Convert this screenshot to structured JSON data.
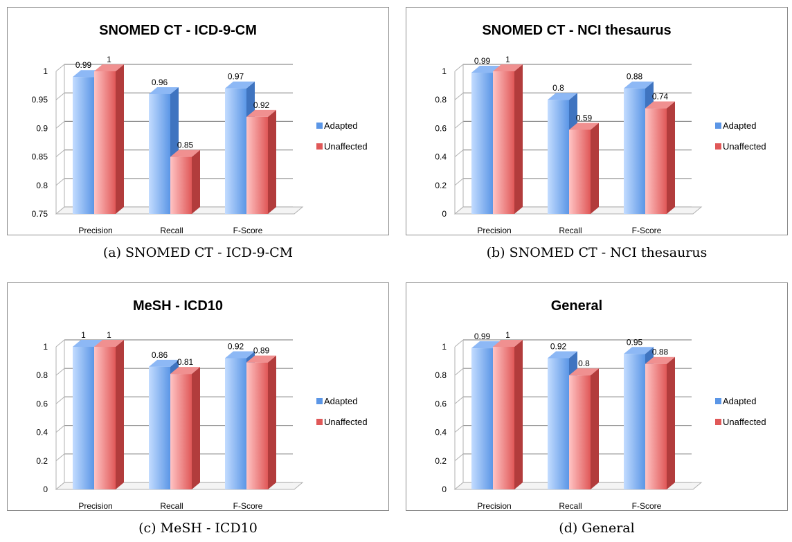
{
  "colors": {
    "adapted_front_light": "#c3dcff",
    "adapted_front_dark": "#5b96e6",
    "adapted_side": "#3f74c0",
    "adapted_top": "#8db8f5",
    "unaffected_front_light": "#ffc4c4",
    "unaffected_front_dark": "#e05858",
    "unaffected_side": "#b23c3c",
    "unaffected_top": "#f09090"
  },
  "panels": [
    {
      "caption": "(a) SNOMED CT - ICD-9-CM",
      "chart_data": {
        "type": "bar",
        "title": "SNOMED CT - ICD-9-CM",
        "categories": [
          "Precision",
          "Recall",
          "F-Score"
        ],
        "series": [
          {
            "name": "Adapted",
            "values": [
              0.99,
              0.96,
              0.97
            ],
            "labels": [
              "0.99",
              "0.96",
              "0.97"
            ]
          },
          {
            "name": "Unaffected",
            "values": [
              1,
              0.85,
              0.92
            ],
            "labels": [
              "1",
              "0.85",
              "0.92"
            ]
          }
        ],
        "ylim": [
          0.75,
          1
        ],
        "yticks": [
          "0.75",
          "0.8",
          "0.85",
          "0.9",
          "0.95",
          "1"
        ],
        "legend_position": "right",
        "grid": true
      }
    },
    {
      "caption": "(b) SNOMED CT - NCI thesaurus",
      "chart_data": {
        "type": "bar",
        "title": "SNOMED CT - NCI thesaurus",
        "categories": [
          "Precision",
          "Recall",
          "F-Score"
        ],
        "series": [
          {
            "name": "Adapted",
            "values": [
              0.99,
              0.8,
              0.88
            ],
            "labels": [
              "0.99",
              "0.8",
              "0.88"
            ]
          },
          {
            "name": "Unaffected",
            "values": [
              1,
              0.59,
              0.74
            ],
            "labels": [
              "1",
              "0.59",
              "0.74"
            ]
          }
        ],
        "ylim": [
          0,
          1
        ],
        "yticks": [
          "0",
          "0.2",
          "0.4",
          "0.6",
          "0.8",
          "1"
        ],
        "legend_position": "right",
        "grid": true
      }
    },
    {
      "caption": "(c) MeSH - ICD10",
      "chart_data": {
        "type": "bar",
        "title": "MeSH - ICD10",
        "categories": [
          "Precision",
          "Recall",
          "F-Score"
        ],
        "series": [
          {
            "name": "Adapted",
            "values": [
              1,
              0.86,
              0.92
            ],
            "labels": [
              "1",
              "0.86",
              "0.92"
            ]
          },
          {
            "name": "Unaffected",
            "values": [
              1,
              0.81,
              0.89
            ],
            "labels": [
              "1",
              "0.81",
              "0.89"
            ]
          }
        ],
        "ylim": [
          0,
          1
        ],
        "yticks": [
          "0",
          "0.2",
          "0.4",
          "0.6",
          "0.8",
          "1"
        ],
        "legend_position": "right",
        "grid": true
      }
    },
    {
      "caption": "(d) General",
      "chart_data": {
        "type": "bar",
        "title": "General",
        "categories": [
          "Precision",
          "Recall",
          "F-Score"
        ],
        "series": [
          {
            "name": "Adapted",
            "values": [
              0.99,
              0.92,
              0.95
            ],
            "labels": [
              "0.99",
              "0.92",
              "0.95"
            ]
          },
          {
            "name": "Unaffected",
            "values": [
              1,
              0.8,
              0.88
            ],
            "labels": [
              "1",
              "0.8",
              "0.88"
            ]
          }
        ],
        "ylim": [
          0,
          1
        ],
        "yticks": [
          "0",
          "0.2",
          "0.4",
          "0.6",
          "0.8",
          "1"
        ],
        "legend_position": "right",
        "grid": true
      }
    }
  ]
}
